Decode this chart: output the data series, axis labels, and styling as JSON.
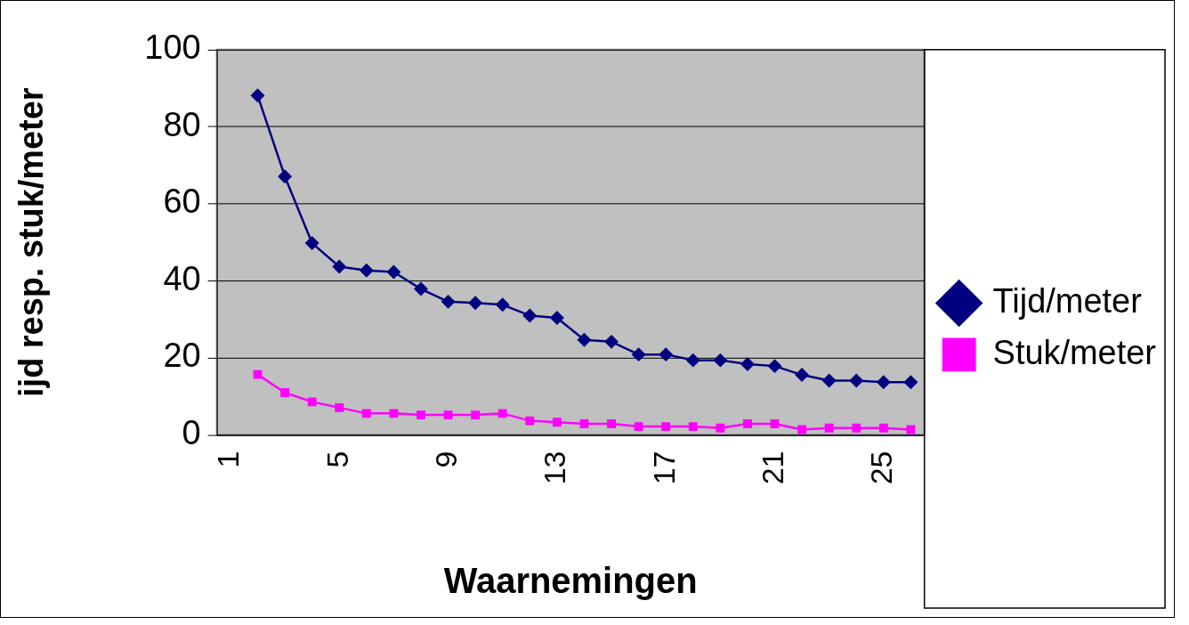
{
  "chart_data": {
    "type": "line",
    "xlabel": "Waarnemingen",
    "ylabel": "ijd resp. stuk/meter",
    "categories": [
      "1",
      null,
      null,
      null,
      "5",
      null,
      null,
      null,
      "9",
      null,
      null,
      null,
      "13",
      null,
      null,
      null,
      "17",
      null,
      null,
      null,
      "21",
      null,
      null,
      null,
      "25",
      null
    ],
    "series": [
      {
        "name": "Tijd/meter",
        "color": "#000080",
        "marker": "diamond",
        "values": [
          null,
          88.1,
          67.1,
          49.8,
          43.7,
          42.7,
          42.3,
          37.9,
          34.6,
          34.3,
          33.8,
          31.0,
          30.4,
          24.7,
          24.2,
          20.9,
          20.9,
          19.4,
          19.4,
          18.4,
          17.9,
          15.6,
          14.1,
          14.1,
          13.7,
          13.7
        ]
      },
      {
        "name": "Stuk/meter",
        "color": "#ff00ff",
        "marker": "square",
        "values": [
          null,
          15.7,
          11.0,
          8.6,
          7.1,
          5.6,
          5.6,
          5.2,
          5.2,
          5.2,
          5.6,
          3.7,
          3.3,
          2.9,
          2.9,
          2.2,
          2.2,
          2.2,
          1.8,
          2.9,
          2.9,
          1.4,
          1.8,
          1.8,
          1.8,
          1.4
        ]
      }
    ],
    "ylim": [
      0,
      100
    ],
    "yticks": [
      0,
      20,
      40,
      60,
      80,
      100
    ],
    "grid": "y",
    "legend": "right"
  }
}
